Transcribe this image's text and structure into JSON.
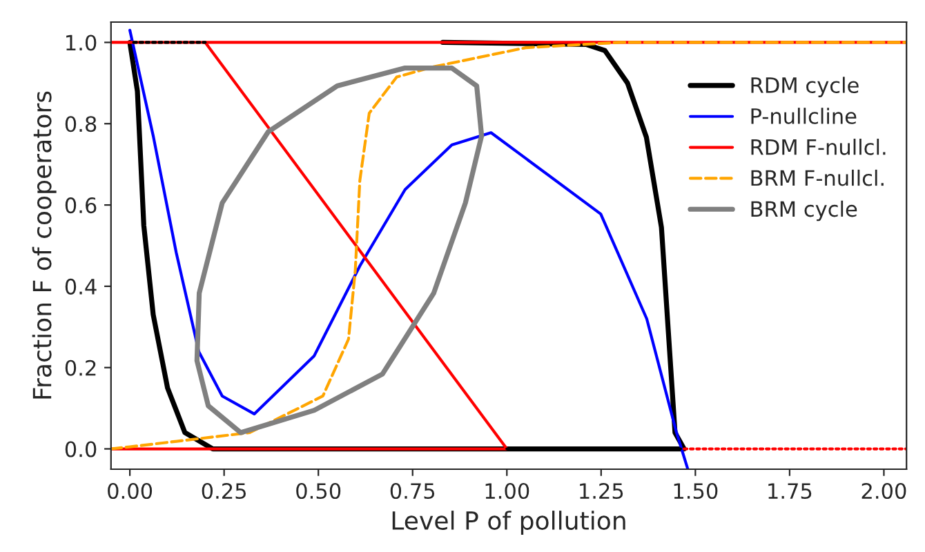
{
  "chart_data": {
    "type": "line",
    "xlabel": "Level P of pollution",
    "ylabel": "Fraction F of cooperators",
    "xlim": [
      -0.05,
      2.06
    ],
    "ylim": [
      -0.05,
      1.05
    ],
    "xticks": [
      {
        "value": 0,
        "label": "0.00"
      },
      {
        "value": 0.25,
        "label": "0.25"
      },
      {
        "value": 0.5,
        "label": "0.50"
      },
      {
        "value": 0.75,
        "label": "0.75"
      },
      {
        "value": 1,
        "label": "1.00"
      },
      {
        "value": 1.25,
        "label": "1.25"
      },
      {
        "value": 1.5,
        "label": "1.50"
      },
      {
        "value": 1.75,
        "label": "1.75"
      },
      {
        "value": 2,
        "label": "2.00"
      }
    ],
    "yticks": [
      {
        "value": 0,
        "label": "0.0"
      },
      {
        "value": 0.2,
        "label": "0.2"
      },
      {
        "value": 0.4,
        "label": "0.4"
      },
      {
        "value": 0.6,
        "label": "0.6"
      },
      {
        "value": 0.8,
        "label": "0.8"
      },
      {
        "value": 1,
        "label": "1.0"
      }
    ],
    "grid": false,
    "legend": "top right",
    "series": [
      {
        "name": "RDM cycle",
        "color": "#000000",
        "line_style": "solid",
        "x": [
          0,
          0.02,
          0.037,
          0.062,
          0.1,
          0.146,
          0.22,
          1.47,
          1.446,
          1.41,
          1.37,
          1.32,
          1.26,
          1.21,
          0.83
        ],
        "values": [
          1,
          0.88,
          0.55,
          0.33,
          0.15,
          0.04,
          0,
          0,
          0.04,
          0.545,
          0.767,
          0.9,
          0.98,
          0.995,
          1
        ]
      },
      {
        "name": "P-nullcline",
        "color": "#0000ff",
        "line_style": "solid",
        "x": [
          0,
          0.062,
          0.123,
          0.183,
          0.245,
          0.33,
          0.489,
          0.61,
          0.73,
          0.854,
          0.958,
          1.249,
          1.371,
          1.45,
          1.48
        ],
        "values": [
          1.03,
          0.77,
          0.483,
          0.239,
          0.13,
          0.086,
          0.229,
          0.45,
          0.638,
          0.748,
          0.778,
          0.578,
          0.32,
          0.04,
          -0.05
        ]
      },
      {
        "name": "RDM F-nullcl.",
        "color": "#ff0000",
        "line_style": "solid",
        "x": [
          -0.048,
          2.06,
          null,
          0.2,
          1.0,
          null,
          -0.05,
          1.0
        ],
        "values": [
          1,
          1,
          null,
          1,
          0,
          null,
          0,
          0
        ]
      },
      {
        "color": "#000000",
        "line_style": "dotted",
        "x": [
          0.01,
          0.2,
          null,
          1.0,
          1.47
        ],
        "values": [
          1,
          1,
          null,
          0,
          0
        ]
      },
      {
        "name": "BRM F-nullcl.",
        "color": "#ffa500",
        "line_style": "dashed",
        "x": [
          -0.05,
          0,
          0.318,
          0.512,
          0.58,
          0.598,
          0.61,
          0.635,
          0.708,
          0.805,
          1.05,
          1.3,
          2.06
        ],
        "values": [
          0,
          0.005,
          0.04,
          0.13,
          0.27,
          0.44,
          0.66,
          0.826,
          0.915,
          0.94,
          0.987,
          1,
          1
        ]
      },
      {
        "name": "BRM cycle",
        "color": "#808080",
        "line_style": "solid",
        "x": [
          0.178,
          0.208,
          0.294,
          0.489,
          0.67,
          0.806,
          0.89,
          0.933,
          null,
          0.178,
          0.184,
          0.245,
          0.367,
          0.55,
          0.73,
          0.854,
          0.92,
          0.933
        ],
        "values": [
          0.217,
          0.106,
          0.04,
          0.095,
          0.184,
          0.383,
          0.605,
          0.77,
          null,
          0.217,
          0.383,
          0.605,
          0.78,
          0.893,
          0.937,
          0.937,
          0.893,
          0.77
        ]
      },
      {
        "color": "#ff0000",
        "line_style": "dotted",
        "x": [
          1.47,
          2.06
        ],
        "values": [
          0,
          0
        ]
      }
    ]
  }
}
